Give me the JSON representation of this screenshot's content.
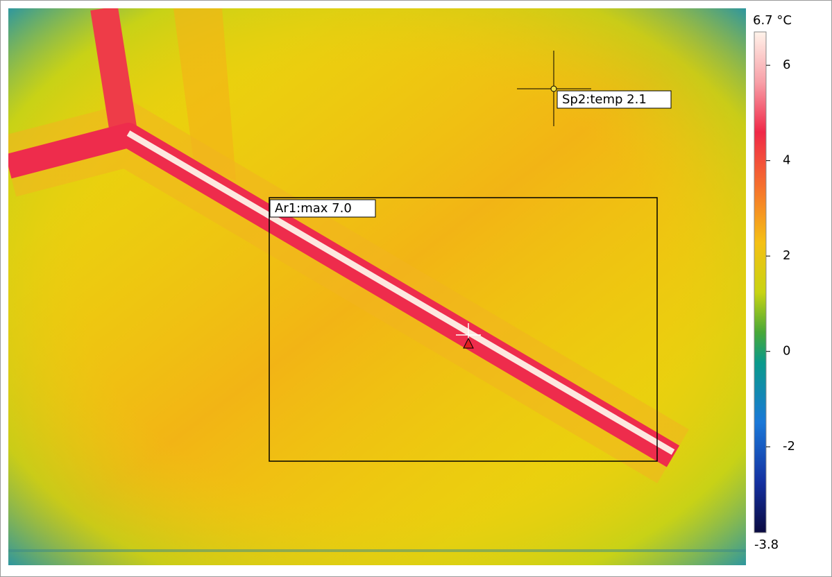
{
  "scale": {
    "max": {
      "value": 6.7,
      "label": "6.7 °C"
    },
    "min": -3.8,
    "ticks": [
      6,
      4,
      2,
      0,
      -2
    ]
  },
  "measurements": {
    "spot": "Sp2:temp 2.1",
    "area": "Ar1:max 7.0"
  }
}
